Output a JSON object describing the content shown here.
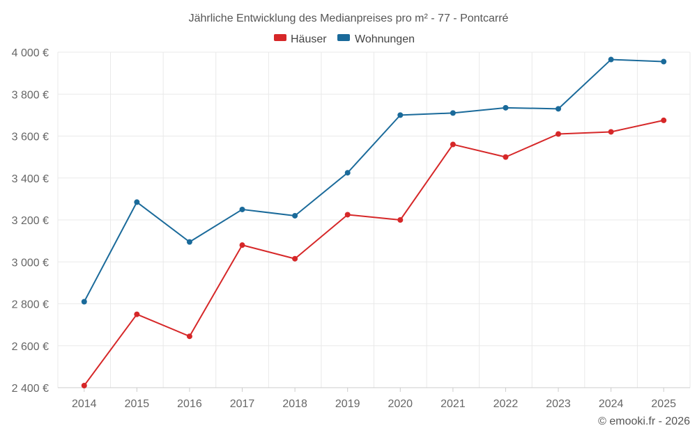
{
  "chart_data": {
    "type": "line",
    "title": "Jährliche Entwicklung des Medianpreises pro m² - 77 - Pontcarré",
    "categories": [
      "2014",
      "2015",
      "2016",
      "2017",
      "2018",
      "2019",
      "2020",
      "2021",
      "2022",
      "2023",
      "2024",
      "2025"
    ],
    "series": [
      {
        "name": "Häuser",
        "color": "#d62728",
        "values": [
          2410,
          2750,
          2645,
          3080,
          3015,
          3225,
          3200,
          3560,
          3500,
          3610,
          3620,
          3675
        ]
      },
      {
        "name": "Wohnungen",
        "color": "#1a6a9a",
        "values": [
          2810,
          3285,
          3095,
          3250,
          3220,
          3425,
          3700,
          3710,
          3735,
          3730,
          3965,
          3955
        ]
      }
    ],
    "ylim": [
      2400,
      4000
    ],
    "yticks": [
      2400,
      2600,
      2800,
      3000,
      3200,
      3400,
      3600,
      3800,
      4000
    ],
    "ytick_labels": [
      "2 400 €",
      "2 600 €",
      "2 800 €",
      "3 000 €",
      "3 200 €",
      "3 400 €",
      "3 600 €",
      "3 800 €",
      "4 000 €"
    ],
    "xlabel": "",
    "ylabel": "",
    "legend": "top-center",
    "grid": true
  },
  "credit": "© emooki.fr - 2026"
}
